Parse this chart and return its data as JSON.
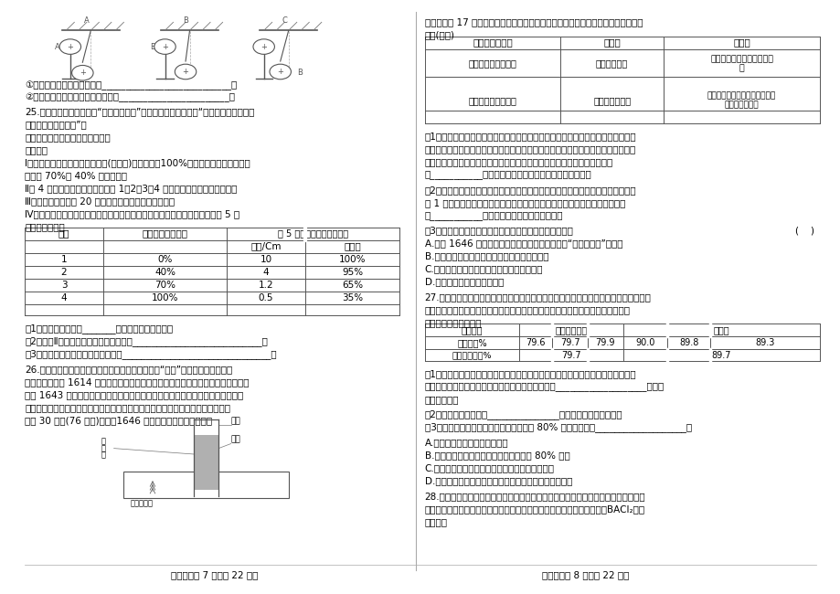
{
  "bg_color": "#ffffff",
  "page_width": 9.2,
  "page_height": 6.5,
  "dpi": 100,
  "footer_text": "科学试卷第 7 页（八 22 页）科学试卷第 8 页（八 22 页）",
  "table1_rows": [
    [
      "1",
      "0%",
      "10",
      "100%"
    ],
    [
      "2",
      "40%",
      "4",
      "95%"
    ],
    [
      "3",
      "70%",
      "1.2",
      "65%"
    ],
    [
      "4",
      "100%",
      "0.5",
      "35%"
    ]
  ],
  "table3_row1": [
    "79.6",
    "79.7",
    "79.9",
    "90.0",
    "89.8",
    "89.3"
  ],
  "table3_avg": [
    "79.7",
    "89.7"
  ]
}
